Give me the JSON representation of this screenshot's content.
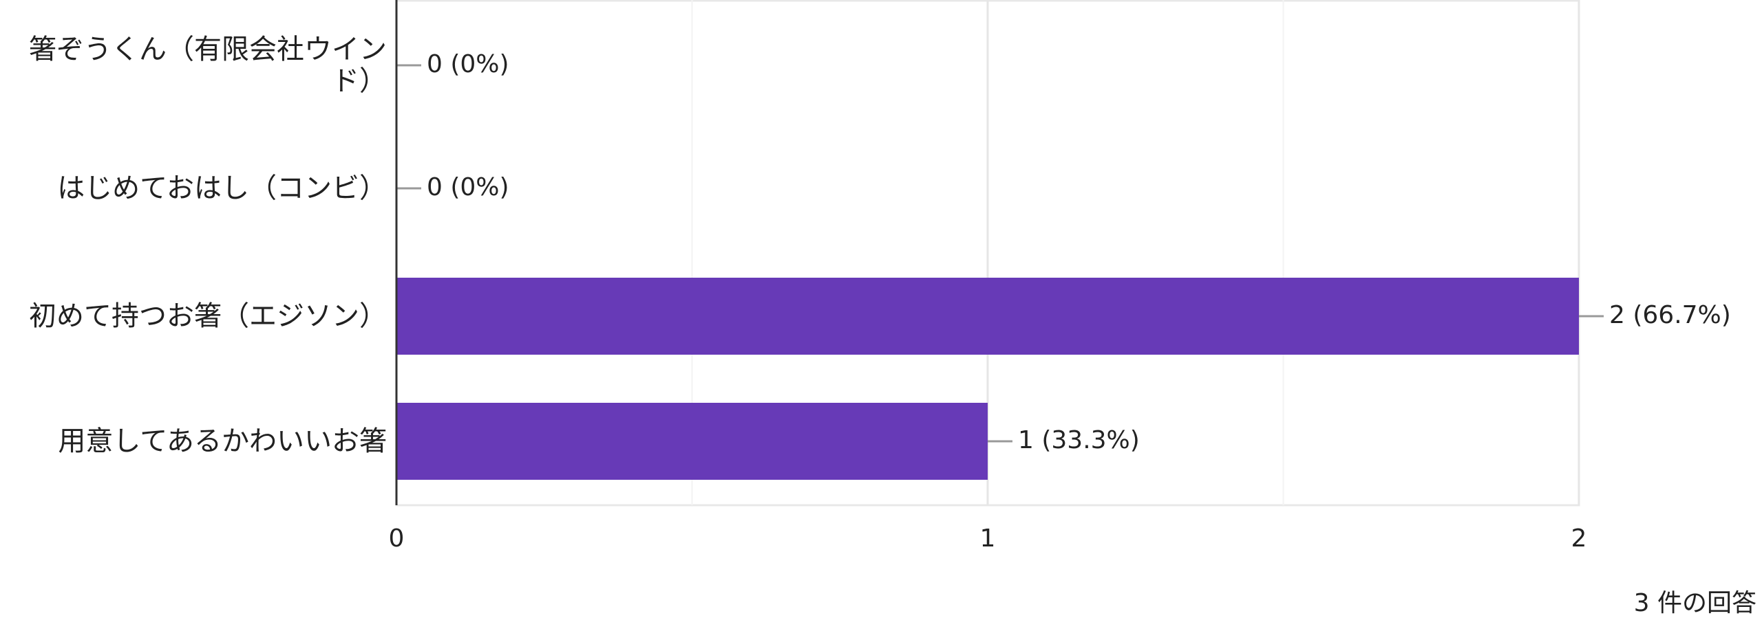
{
  "chart_data": {
    "type": "bar",
    "orientation": "horizontal",
    "categories": [
      "箸ぞうくん（有限会社ウインド）",
      "はじめておはし（コンビ）",
      "初めて持つお箸（エジソン）",
      "用意してあるかわいいお箸"
    ],
    "values": [
      0,
      0,
      2,
      1
    ],
    "value_labels": [
      "0 (0%)",
      "0 (0%)",
      "2 (66.7%)",
      "1 (33.3%)"
    ],
    "color": "#673ab7",
    "xlim": [
      0,
      2
    ],
    "xticks": [
      0,
      1,
      2
    ],
    "grid": true,
    "footer": "3 件の回答"
  }
}
